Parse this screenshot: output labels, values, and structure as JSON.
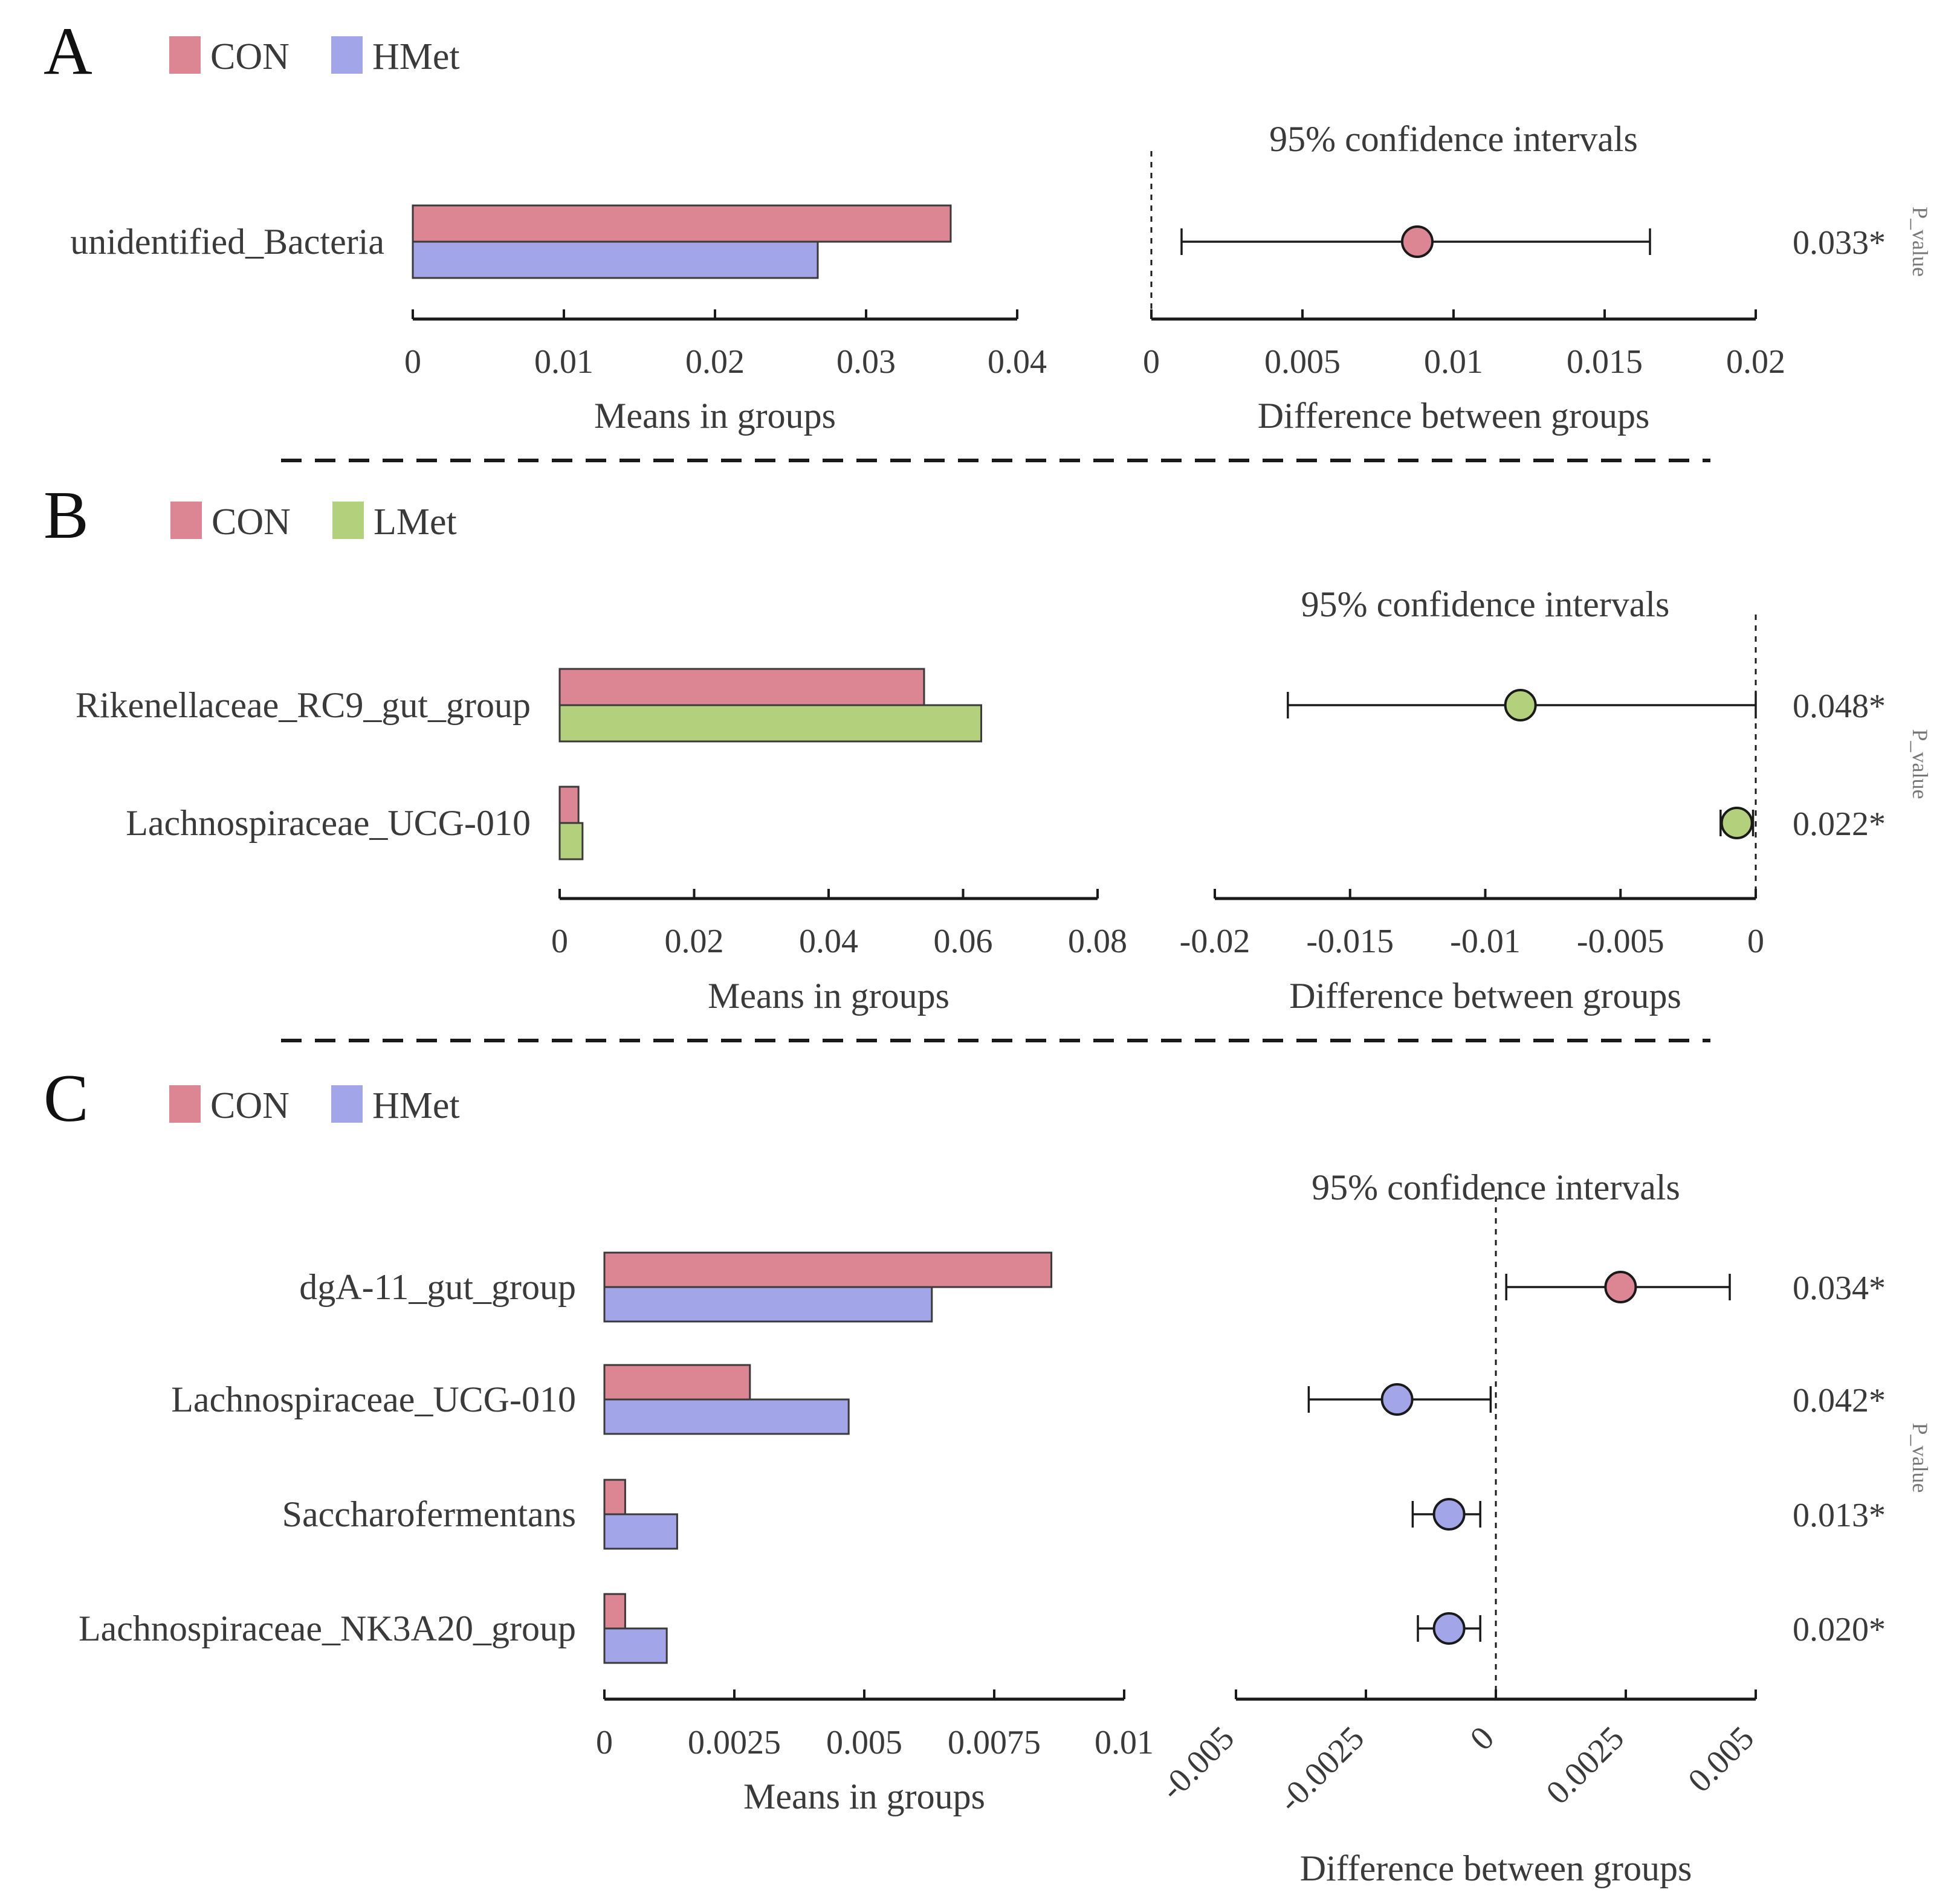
{
  "colors": {
    "CON": "#dc8593",
    "HMet": "#a2a6e8",
    "LMet": "#b3d07d"
  },
  "chart_data": [
    {
      "panel": "A",
      "type": "bar",
      "legend": [
        "CON",
        "HMet"
      ],
      "categories": [
        "unidentified_Bacteria"
      ],
      "series": [
        {
          "name": "CON",
          "values": [
            0.0356
          ]
        },
        {
          "name": "HMet",
          "values": [
            0.0268
          ]
        }
      ],
      "xlabel": "Means in groups",
      "xlim": [
        0,
        0.04
      ],
      "xticks": [
        0,
        0.01,
        0.02,
        0.03,
        0.04
      ],
      "xtick_labels": [
        "0",
        "0.01",
        "0.02",
        "0.03",
        "0.04"
      ],
      "ci": {
        "title": "95% confidence intervals",
        "xlabel": "Difference between groups",
        "xlim": [
          0,
          0.02
        ],
        "xticks": [
          0,
          0.005,
          0.01,
          0.015,
          0.02
        ],
        "xtick_labels": [
          "0",
          "0.005",
          "0.01",
          "0.015",
          "0.02"
        ],
        "points": [
          {
            "estimate": 0.0088,
            "lower": 0.001,
            "upper": 0.0165,
            "group": "CON"
          }
        ]
      },
      "p_title": "P_value",
      "p_values": [
        "0.033*"
      ]
    },
    {
      "panel": "B",
      "type": "bar",
      "legend": [
        "CON",
        "LMet"
      ],
      "categories": [
        "Rikenellaceae_RC9_gut_group",
        "Lachnospiraceae_UCG-010"
      ],
      "series": [
        {
          "name": "CON",
          "values": [
            0.0542,
            0.0028
          ]
        },
        {
          "name": "LMet",
          "values": [
            0.0627,
            0.0034
          ]
        }
      ],
      "xlabel": "Means in groups",
      "xlim": [
        0,
        0.08
      ],
      "xticks": [
        0,
        0.02,
        0.04,
        0.06,
        0.08
      ],
      "xtick_labels": [
        "0",
        "0.02",
        "0.04",
        "0.06",
        "0.08"
      ],
      "ci": {
        "title": "95% confidence intervals",
        "xlabel": "Difference between groups",
        "xlim": [
          -0.02,
          0
        ],
        "xticks": [
          -0.02,
          -0.015,
          -0.01,
          -0.005,
          0
        ],
        "xtick_labels": [
          "-0.02",
          "-0.015",
          "-0.01",
          "-0.005",
          "0"
        ],
        "points": [
          {
            "estimate": -0.0087,
            "lower": -0.0173,
            "upper": 0.0,
            "group": "LMet"
          },
          {
            "estimate": -0.0007,
            "lower": -0.0013,
            "upper": -0.0001,
            "group": "LMet"
          }
        ]
      },
      "p_title": "P_value",
      "p_values": [
        "0.048*",
        "0.022*"
      ]
    },
    {
      "panel": "C",
      "type": "bar",
      "legend": [
        "CON",
        "HMet"
      ],
      "categories": [
        "dgA-11_gut_group",
        "Lachnospiraceae_UCG-010",
        "Saccharofermentans",
        "Lachnospiraceae_NK3A20_group"
      ],
      "series": [
        {
          "name": "CON",
          "values": [
            0.0086,
            0.0028,
            0.0004,
            0.0004
          ]
        },
        {
          "name": "HMet",
          "values": [
            0.0063,
            0.0047,
            0.0014,
            0.0012
          ]
        }
      ],
      "xlabel": "Means in groups",
      "xlim": [
        0,
        0.01
      ],
      "xticks": [
        0,
        0.0025,
        0.005,
        0.0075,
        0.01
      ],
      "xtick_labels": [
        "0",
        "0.0025",
        "0.005",
        "0.0075",
        "0.01"
      ],
      "ci": {
        "title": "95% confidence intervals",
        "xlabel": "Difference between groups",
        "xlim": [
          -0.005,
          0.005
        ],
        "xticks": [
          -0.005,
          -0.0025,
          0,
          0.0025,
          0.005
        ],
        "xtick_labels": [
          "-0.005",
          "-0.0025",
          "0",
          "0.0025",
          "0.005"
        ],
        "points": [
          {
            "estimate": 0.0024,
            "lower": 0.0002,
            "upper": 0.0045,
            "group": "CON"
          },
          {
            "estimate": -0.0019,
            "lower": -0.0036,
            "upper": -0.0001,
            "group": "HMet"
          },
          {
            "estimate": -0.0009,
            "lower": -0.0016,
            "upper": -0.0003,
            "group": "HMet"
          },
          {
            "estimate": -0.0009,
            "lower": -0.0015,
            "upper": -0.0003,
            "group": "HMet"
          }
        ]
      },
      "p_title": "P_value",
      "p_values": [
        "0.034*",
        "0.042*",
        "0.013*",
        "0.020*"
      ]
    }
  ]
}
